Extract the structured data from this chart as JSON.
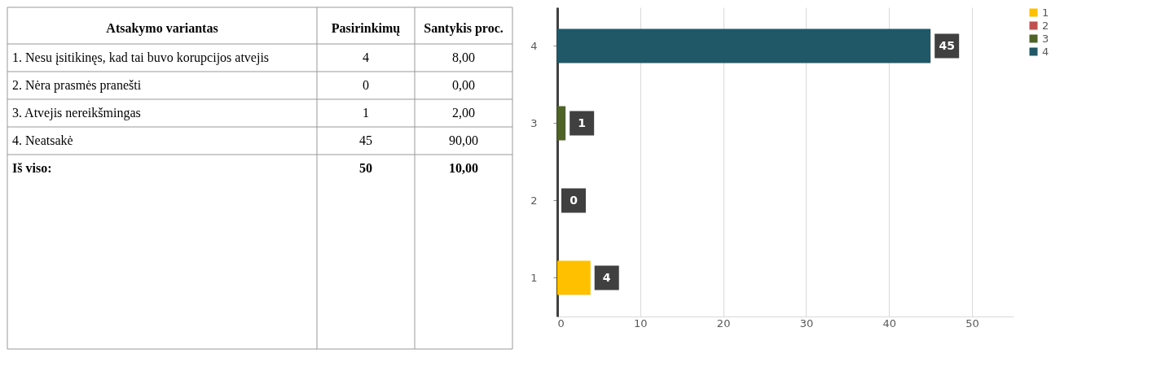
{
  "chart_data": [
    {
      "type": "other",
      "categories": [
        "Atsakymo variantas",
        "Pasirinkimų",
        "Santykis proc."
      ],
      "annotations": [
        "1. Nesu įsitikinęs, kad tai buvo korupcijos atvejis",
        "4",
        "8,00",
        "2. Nėra prasmės pranešti",
        "0",
        "0,00",
        "3. Atvejis nereikšmingas",
        "1",
        "2,00",
        "4. Neatsakė",
        "45",
        "90,00",
        "Iš viso:",
        "50",
        "10,00"
      ]
    },
    {
      "type": "bar",
      "orientation": "horizontal",
      "categories": [
        "4",
        "3",
        "2",
        "1"
      ],
      "series": [
        {
          "name": "1",
          "color": "#ffc000",
          "values": [
            null,
            null,
            null,
            4
          ]
        },
        {
          "name": "2",
          "color": "#c0504d",
          "values": [
            null,
            null,
            0,
            null
          ]
        },
        {
          "name": "3",
          "color": "#4f6228",
          "values": [
            null,
            1,
            null,
            null
          ]
        },
        {
          "name": "4",
          "color": "#215868",
          "values": [
            45,
            null,
            null,
            null
          ]
        }
      ],
      "xlim": [
        0,
        55
      ],
      "xticks": [
        0,
        10,
        20,
        30,
        40,
        50
      ],
      "grid": "x",
      "legend": "right",
      "data_labels": true
    }
  ]
}
